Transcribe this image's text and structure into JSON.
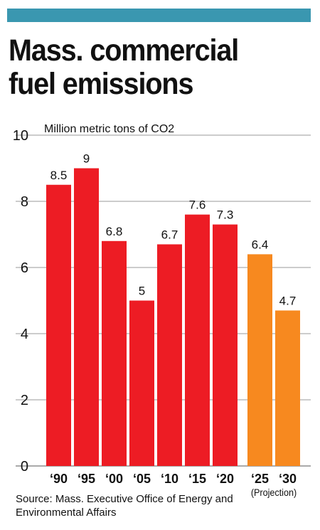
{
  "header": {
    "title": "Mass. commercial fuel emissions",
    "bar_color": "#3a97b0"
  },
  "source": "Source: Mass. Executive Office of Energy and Environmental Affairs",
  "chart_data": {
    "type": "bar",
    "title": "Mass. commercial fuel emissions",
    "ylabel": "Million metric tons of CO2",
    "xlabel": "",
    "categories": [
      "‘90",
      "‘95",
      "‘00",
      "‘05",
      "‘10",
      "‘15",
      "‘20",
      "‘25",
      "‘30"
    ],
    "values": [
      8.5,
      9,
      6.8,
      5,
      6.7,
      7.6,
      7.3,
      6.4,
      4.7
    ],
    "data_labels": [
      "8.5",
      "9",
      "6.8",
      "5",
      "6.7",
      "7.6",
      "7.3",
      "6.4",
      "4.7"
    ],
    "projected": [
      false,
      false,
      false,
      false,
      false,
      false,
      false,
      true,
      true
    ],
    "projection_label": "(Projection)",
    "ylim": [
      0,
      10
    ],
    "yticks": [
      0,
      2,
      4,
      6,
      8,
      10
    ],
    "grid": true,
    "colors": {
      "actual": "#ed1c24",
      "projection": "#f7891f",
      "grid": "#999999"
    }
  }
}
